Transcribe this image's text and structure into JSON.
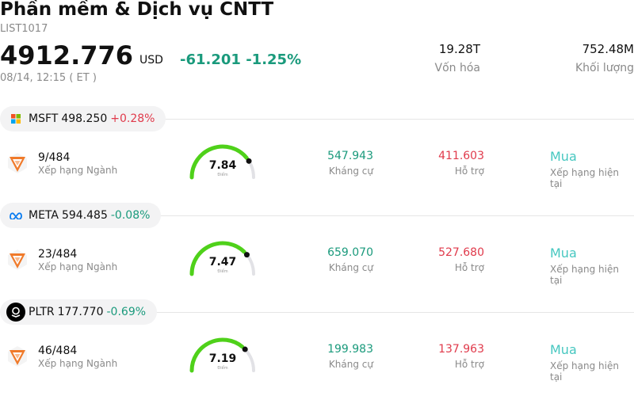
{
  "header": {
    "title": "Phần mềm & Dịch vụ CNTT",
    "code": "LIST1017",
    "price": "4912.776",
    "currency": "USD",
    "change": "-61.201 -1.25%",
    "timestamp": "08/14, 12:15  ( ET )",
    "market_cap_value": "19.28T",
    "market_cap_label": "Vốn hóa",
    "volume_value": "752.48M",
    "volume_label": "Khối lượng"
  },
  "stocks": [
    {
      "ticker": "MSFT",
      "price": "498.250",
      "change": "+0.28%",
      "change_dir": "up",
      "logo_icon": "microsoft-logo-icon",
      "rank": "9/484",
      "rank_label": "Xếp hạng Ngành",
      "score": "7.84",
      "score_value": 7.84,
      "score_label": "Điểm",
      "resistance": "547.943",
      "resistance_label": "Kháng cự",
      "support": "411.603",
      "support_label": "Hỗ trợ",
      "rating": "Mua",
      "rating_label": "Xếp hạng hiện tại"
    },
    {
      "ticker": "META",
      "price": "594.485",
      "change": "-0.08%",
      "change_dir": "down",
      "logo_icon": "meta-logo-icon",
      "rank": "23/484",
      "rank_label": "Xếp hạng Ngành",
      "score": "7.47",
      "score_value": 7.47,
      "score_label": "Điểm",
      "resistance": "659.070",
      "resistance_label": "Kháng cự",
      "support": "527.680",
      "support_label": "Hỗ trợ",
      "rating": "Mua",
      "rating_label": "Xếp hạng hiện tại"
    },
    {
      "ticker": "PLTR",
      "price": "177.770",
      "change": "-0.69%",
      "change_dir": "down",
      "logo_icon": "palantir-logo-icon",
      "rank": "46/484",
      "rank_label": "Xếp hạng Ngành",
      "score": "7.19",
      "score_value": 7.19,
      "score_label": "Điểm",
      "resistance": "199.983",
      "resistance_label": "Kháng cự",
      "support": "137.963",
      "support_label": "Hỗ trợ",
      "rating": "Mua",
      "rating_label": "Xếp hạng hiện tại"
    }
  ],
  "colors": {
    "positive": "#e03a4b",
    "negative": "#1a9a7c",
    "gauge_fill": "#4fd11a",
    "gauge_track": "#e2e2e6",
    "rating": "#46c7c0",
    "rank_icon": "#f07a2a"
  }
}
